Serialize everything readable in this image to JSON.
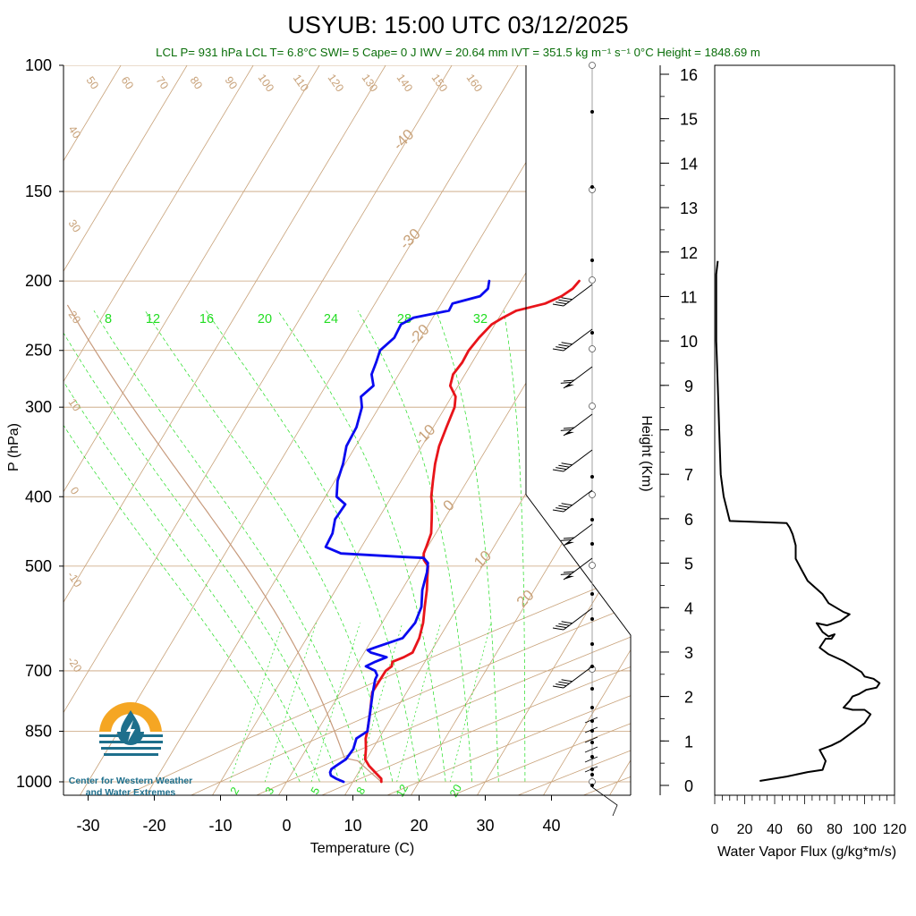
{
  "title": "USYUB: 15:00 UTC 03/12/2025",
  "stats_line": "LCL P= 931 hPa  LCL T= 6.8°C  SWI= 5  Cape= 0 J  IWV = 20.64 mm  IVT = 351.5 kg m⁻¹ s⁻¹  0°C Height = 1848.69 m",
  "logo": {
    "line1": "Center for Western Weather",
    "line2": "and Water Extremes",
    "colors": {
      "sun": "#f5a623",
      "water": "#1e6f8c"
    }
  },
  "colors": {
    "temperature": "#e8141a",
    "dewpoint": "#0a0af0",
    "isotherm": "#c8a27a",
    "mixing_ratio": "#22dd22",
    "stats_text": "#0a6e0a"
  },
  "chart_data": [
    {
      "type": "line",
      "name": "skewt-logp",
      "xlabel": "Temperature (C)",
      "ylabel": "P (hPa)",
      "x_ticks": [
        -30,
        -20,
        -10,
        0,
        10,
        20,
        30,
        40
      ],
      "y_ticks": [
        100,
        150,
        200,
        250,
        300,
        400,
        500,
        700,
        850,
        1000
      ],
      "isotherm_labels": [
        -40,
        -30,
        -20,
        -10,
        0,
        10,
        20,
        30
      ],
      "adiabat_top_labels": [
        50,
        60,
        70,
        80,
        90,
        100,
        110,
        120,
        130,
        140,
        150,
        160
      ],
      "adiabat_left_labels": [
        40,
        30,
        20,
        10,
        0,
        -10,
        -20
      ],
      "mixing_ratio_top_labels": [
        8,
        12,
        16,
        20,
        24,
        28,
        32
      ],
      "mixing_ratio_bottom_labels": [
        2,
        3,
        5,
        8,
        12,
        20
      ],
      "series": [
        {
          "name": "",
          "p": [
            1000,
            990,
            970,
            950,
            930,
            900,
            870,
            850,
            800,
            750,
            700,
            690,
            680,
            670,
            660,
            650,
            630,
            600,
            570,
            540,
            520,
            500,
            490,
            480,
            470,
            450,
            430,
            410,
            400,
            380,
            360,
            340,
            320,
            300,
            290,
            280,
            270,
            260,
            250,
            240,
            230,
            225,
            220,
            215,
            210,
            205,
            200
          ],
          "t": [
            14.3,
            14.0,
            12.5,
            11.0,
            9.8,
            9.0,
            8.0,
            7.6,
            6.3,
            4.8,
            4.9,
            5.4,
            5.1,
            6.4,
            7.3,
            7.2,
            7.0,
            6.2,
            5.0,
            3.8,
            2.8,
            1.8,
            0.6,
            0.0,
            -0.2,
            -0.7,
            -1.9,
            -3.2,
            -4.0,
            -5.2,
            -6.4,
            -7.4,
            -8.0,
            -8.6,
            -9.4,
            -11.2,
            -11.8,
            -11.5,
            -11.6,
            -11.2,
            -10.5,
            -9.4,
            -8.0,
            -4.3,
            -2.5,
            -1.5,
            -1.2
          ]
        },
        {
          "name": "",
          "p": [
            1000,
            990,
            980,
            970,
            960,
            950,
            930,
            900,
            870,
            850,
            800,
            750,
            720,
            710,
            700,
            690,
            680,
            670,
            660,
            655,
            650,
            630,
            600,
            570,
            540,
            510,
            495,
            487,
            485,
            480,
            470,
            450,
            430,
            410,
            400,
            380,
            360,
            340,
            320,
            300,
            290,
            280,
            270,
            260,
            250,
            240,
            230,
            225,
            220,
            215,
            210,
            205,
            200
          ],
          "t": [
            8.6,
            7.2,
            6.1,
            5.7,
            5.6,
            6.0,
            6.9,
            7.1,
            6.6,
            7.6,
            6.3,
            4.9,
            4.1,
            4.0,
            3.3,
            1.5,
            2.5,
            3.8,
            1.0,
            0.3,
            1.1,
            4.5,
            5.0,
            4.5,
            3.1,
            2.2,
            1.5,
            0.4,
            -3.5,
            -12.5,
            -15.4,
            -15.6,
            -16.5,
            -16.3,
            -18.3,
            -19.6,
            -20.3,
            -21.4,
            -21.6,
            -22.6,
            -23.7,
            -22.8,
            -24.1,
            -24.5,
            -25.0,
            -24.0,
            -24.2,
            -22.9,
            -18.2,
            -18.3,
            -14.8,
            -14.3,
            -14.8
          ]
        }
      ]
    },
    {
      "type": "line",
      "name": "water-vapor-flux-profile",
      "xlabel": "Water Vapor Flux (g/kg*m/s)",
      "ylabel": "Height (Km)",
      "xlim": [
        0,
        120
      ],
      "ylim": [
        0,
        16
      ],
      "x_ticks": [
        0,
        20,
        40,
        60,
        80,
        100,
        120
      ],
      "y_ticks": [
        0,
        1,
        2,
        3,
        4,
        5,
        6,
        7,
        8,
        9,
        10,
        11,
        12,
        13,
        14,
        15,
        16
      ],
      "x": [
        30,
        48,
        62,
        72,
        74,
        70,
        78,
        84,
        90,
        96,
        100,
        104,
        100,
        92,
        86,
        90,
        92,
        96,
        101,
        108,
        110,
        106,
        100,
        98,
        86,
        76,
        70,
        74,
        78,
        80,
        76,
        72,
        70,
        68,
        75,
        84,
        90,
        86,
        76,
        72,
        62,
        58,
        54,
        54,
        52,
        50,
        48,
        10,
        6,
        4,
        3,
        2,
        1,
        1,
        1,
        2
      ],
      "y": [
        0.1,
        0.2,
        0.3,
        0.35,
        0.55,
        0.8,
        0.9,
        1.0,
        1.15,
        1.3,
        1.4,
        1.6,
        1.7,
        1.7,
        1.75,
        1.9,
        2.0,
        2.05,
        2.15,
        2.2,
        2.3,
        2.4,
        2.45,
        2.55,
        2.8,
        2.95,
        3.1,
        3.3,
        3.3,
        3.4,
        3.35,
        3.45,
        3.55,
        3.65,
        3.6,
        3.7,
        3.85,
        3.9,
        4.1,
        4.3,
        4.6,
        4.85,
        5.1,
        5.4,
        5.65,
        5.8,
        5.9,
        5.95,
        6.5,
        7.0,
        8.0,
        9.0,
        10.0,
        11.0,
        11.5,
        11.8
      ]
    }
  ]
}
